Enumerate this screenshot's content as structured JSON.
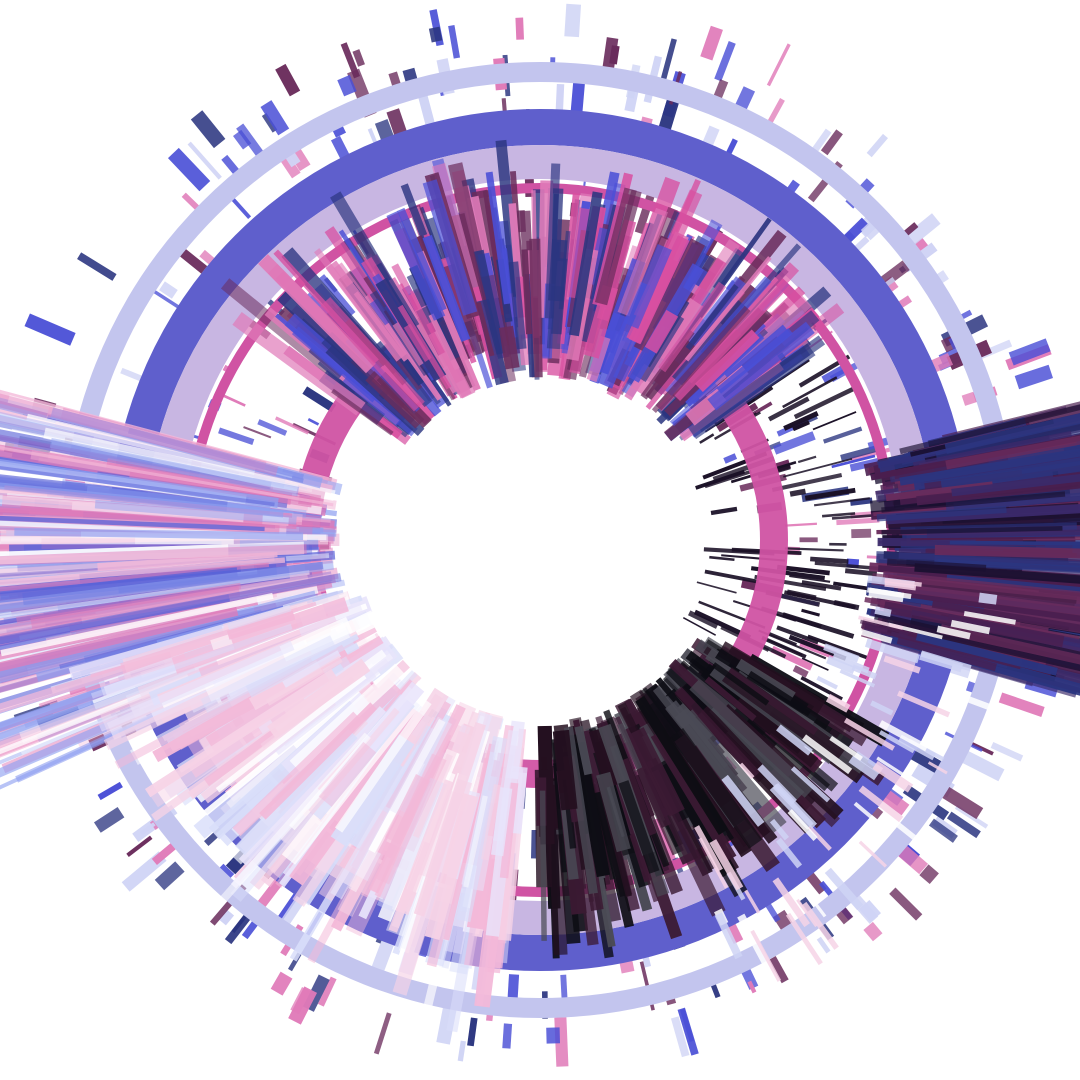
{
  "artwork": {
    "kind": "generative radial ring artwork",
    "background": "#ffffff",
    "palette": {
      "ring_lavender": "#c3c5ee",
      "ring_indigo": "#5f5fcc",
      "ring_mauve": "#c8b6e2",
      "ring_pink": "#d053a3",
      "burst_dark": "#1a1026",
      "burst_navy": "#2b3580",
      "burst_plum": "#6a2c5c",
      "burst_blue": "#4a4fd6",
      "burst_pink": "#e07ab8",
      "burst_pale_blue": "#cfd3f5",
      "burst_pale_pink": "#f6d3e6"
    },
    "rings": [
      {
        "name": "outer-lavender-ring",
        "color": "#c3c5ee"
      },
      {
        "name": "indigo-band",
        "color": "#5f5fcc"
      },
      {
        "name": "mauve-band",
        "color": "#c8b6e2"
      },
      {
        "name": "thin-pink-ring",
        "color": "#d053a3"
      },
      {
        "name": "inner-pink-ring",
        "color": "#d053a3"
      }
    ],
    "layers": [
      {
        "name": "top-burst",
        "colors": [
          "#4a4fd6",
          "#d84fa0",
          "#2b3580",
          "#e07ab8",
          "#6a2c5c"
        ]
      },
      {
        "name": "left-fan",
        "colors": [
          "#f3b8d8",
          "#8fa0f0",
          "#ffffff",
          "#e07ab8",
          "#5a63d8"
        ]
      },
      {
        "name": "right-fan",
        "colors": [
          "#1a1030",
          "#3a2a6a",
          "#6a2c5c",
          "#2b3580",
          "#4a1f4f"
        ]
      },
      {
        "name": "bottom-right-dark-burst",
        "colors": [
          "#0d0d14",
          "#241020",
          "#3b1a33",
          "#4a4a55"
        ]
      },
      {
        "name": "bottom-left-pale-burst",
        "colors": [
          "#f6d3e6",
          "#e8e4fb",
          "#ffffff",
          "#f3b8d8",
          "#d9defa"
        ]
      }
    ]
  }
}
